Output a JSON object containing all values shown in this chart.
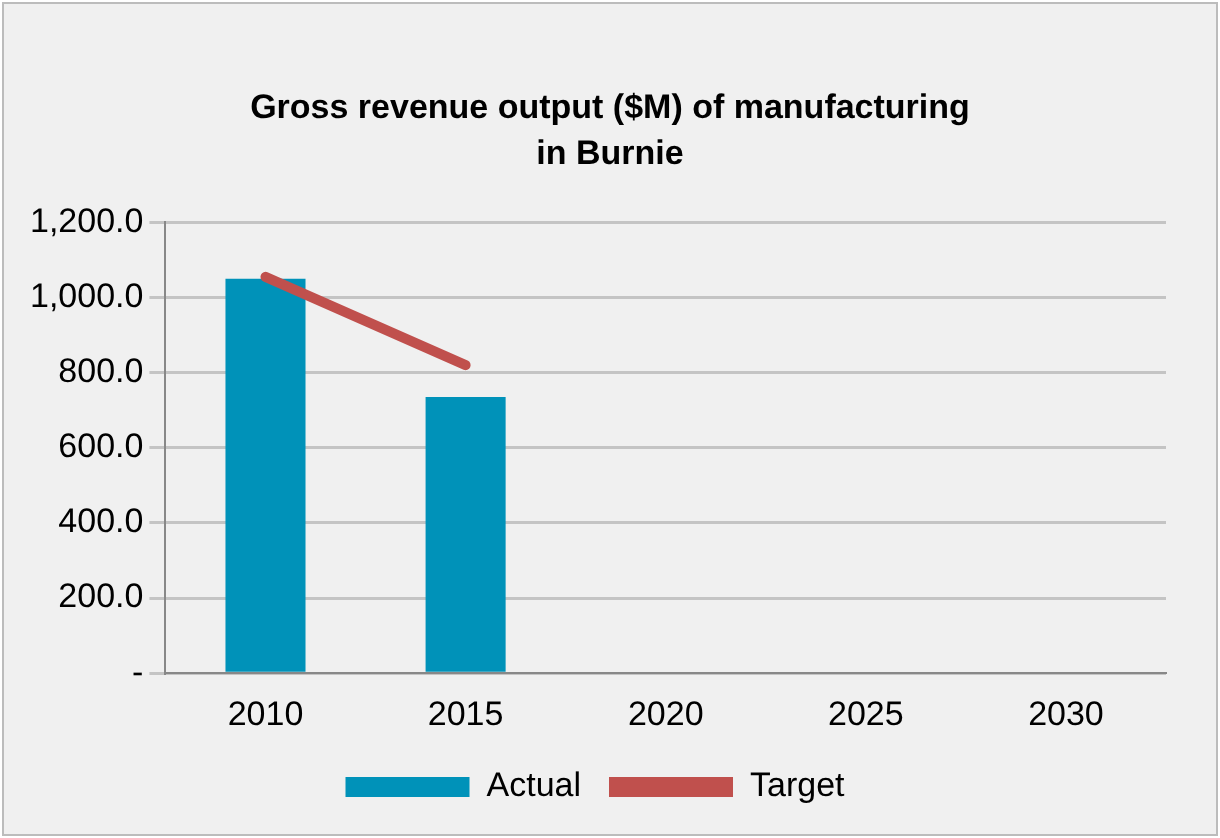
{
  "chart_data": {
    "type": "bar",
    "title": "Gross revenue output ($M) of manufacturing in Burnie",
    "categories": [
      "2010",
      "2015",
      "2020",
      "2025",
      "2030"
    ],
    "series": [
      {
        "name": "Actual",
        "color": "#0092b9",
        "values": [
          1050,
          735,
          null,
          null,
          null
        ]
      },
      {
        "name": "Target",
        "type": "line",
        "color": "#c0504d",
        "values": [
          1055,
          820,
          null,
          null,
          null
        ]
      }
    ],
    "ylim": [
      0,
      1200
    ],
    "yticks": [
      {
        "value": 0,
        "label": "-"
      },
      {
        "value": 200,
        "label": "200.0"
      },
      {
        "value": 400,
        "label": "400.0"
      },
      {
        "value": 600,
        "label": "600.0"
      },
      {
        "value": 800,
        "label": "800.0"
      },
      {
        "value": 1000,
        "label": "1,000.0"
      },
      {
        "value": 1200,
        "label": "1,200.0"
      }
    ],
    "grid": "y",
    "legend": "bottom",
    "marker": "none"
  }
}
